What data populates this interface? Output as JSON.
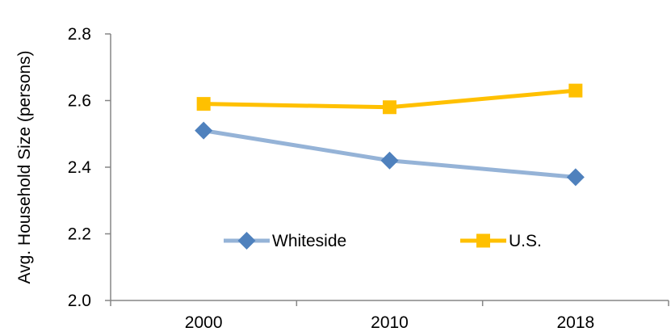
{
  "chart_data": {
    "type": "line",
    "title": "",
    "xlabel": "",
    "ylabel": "Avg. Household Size (persons)",
    "categories": [
      "2000",
      "2010",
      "2018"
    ],
    "ylim": [
      2.0,
      2.8
    ],
    "yticks": [
      "2.0",
      "2.2",
      "2.4",
      "2.6",
      "2.8"
    ],
    "grid": false,
    "legend_position": "bottom-center",
    "series": [
      {
        "name": "Whiteside",
        "values": [
          2.51,
          2.42,
          2.37
        ],
        "line_color": "#95B3D7",
        "marker_color": "#4F81BD",
        "marker": "diamond"
      },
      {
        "name": "U.S.",
        "values": [
          2.59,
          2.58,
          2.63
        ],
        "line_color": "#FFC000",
        "marker_color": "#FFC000",
        "marker": "square"
      }
    ]
  }
}
